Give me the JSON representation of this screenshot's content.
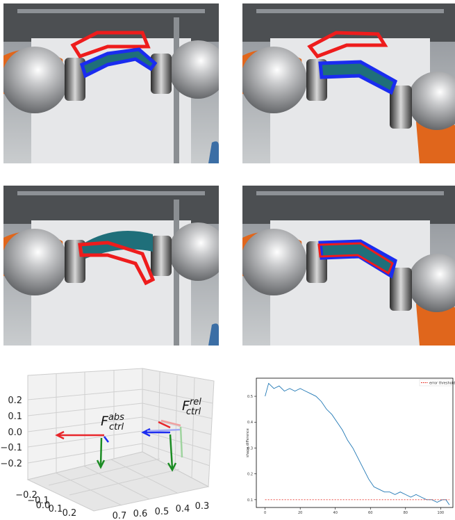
{
  "figure": {
    "frame_labels": [
      {
        "symbol": "F",
        "sup": "abs",
        "sub": "ctrl"
      },
      {
        "symbol": "F",
        "sup": "rel",
        "sub": "ctrl"
      }
    ],
    "zticks": [
      0.2,
      0.1,
      {
        "value": 0.0,
        "label": "0.0"
      },
      {
        "value": -0.1,
        "label": "−0.1"
      },
      {
        "value": -0.2,
        "label": "−0.2"
      }
    ],
    "yticks": [
      {
        "value": -0.2,
        "label": "−0.2"
      },
      {
        "value": -0.1,
        "label": "−0.1"
      },
      {
        "value": 0.0,
        "label": "0.0"
      },
      0.1,
      0.2
    ],
    "xticks": [
      0.7,
      0.6,
      0.5,
      0.4,
      0.3
    ]
  },
  "chart_data": {
    "type": "line",
    "y_label": "shape difference",
    "x": [
      0,
      2,
      5,
      8,
      11,
      14,
      17,
      20,
      23,
      26,
      29,
      32,
      35,
      38,
      41,
      44,
      47,
      50,
      53,
      56,
      59,
      62,
      65,
      68,
      71,
      74,
      77,
      80,
      83,
      86,
      89,
      92,
      95,
      98,
      101,
      103,
      105
    ],
    "series": [
      {
        "color": "#1f77b4",
        "values": [
          0.5,
          0.55,
          0.53,
          0.54,
          0.52,
          0.53,
          0.52,
          0.53,
          0.52,
          0.51,
          0.5,
          0.48,
          0.45,
          0.43,
          0.4,
          0.37,
          0.33,
          0.3,
          0.26,
          0.22,
          0.18,
          0.15,
          0.14,
          0.13,
          0.13,
          0.12,
          0.13,
          0.12,
          0.11,
          0.12,
          0.11,
          0.1,
          0.1,
          0.09,
          0.1,
          0.1,
          0.08
        ]
      },
      {
        "name": "error threshold",
        "color": "#e8352b",
        "dashed": true,
        "x": [
          0,
          105
        ],
        "values": [
          0.1,
          0.1
        ]
      }
    ],
    "xlim": [
      -5,
      107
    ],
    "ylim": [
      0.07,
      0.57
    ],
    "xticks": [
      0,
      20,
      40,
      60,
      80,
      100
    ],
    "yticks": [
      0.1,
      0.2,
      0.3,
      0.4,
      0.5
    ],
    "legend": "upper right"
  }
}
